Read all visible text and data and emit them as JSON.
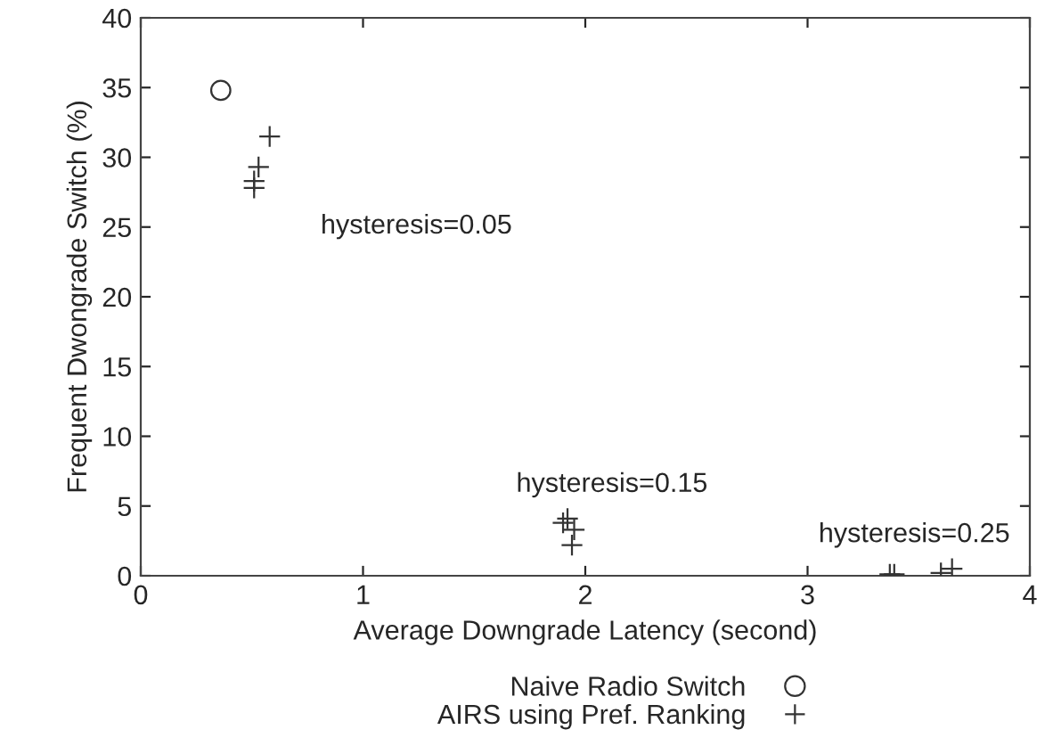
{
  "chart_data": {
    "type": "scatter",
    "xlabel": "Average Downgrade Latency (second)",
    "ylabel": "Frequent Dwongrade Switch (%)",
    "xlim": [
      0,
      4
    ],
    "ylim": [
      0,
      40
    ],
    "xticks": [
      0,
      1,
      2,
      3,
      4
    ],
    "yticks": [
      0,
      5,
      10,
      15,
      20,
      25,
      30,
      35,
      40
    ],
    "grid": false,
    "legend": "bottom",
    "series": [
      {
        "name": "Naive Radio Switch",
        "color": "#333333",
        "marker": "circle",
        "x": [
          0.36
        ],
        "values": [
          34.8
        ]
      },
      {
        "name": "AIRS using Pref. Ranking",
        "color": "#333333",
        "marker": "cross",
        "x": [
          0.58,
          0.53,
          0.51,
          0.51,
          1.9,
          1.92,
          1.95,
          1.94,
          3.37,
          3.39,
          3.6,
          3.65
        ],
        "values": [
          31.5,
          29.3,
          28.3,
          27.8,
          3.8,
          4.1,
          3.3,
          2.2,
          0.1,
          0.1,
          0.2,
          0.5
        ]
      }
    ],
    "annotations": [
      "hysteresis=0.05",
      "hysteresis=0.15",
      "hysteresis=0.25"
    ]
  }
}
